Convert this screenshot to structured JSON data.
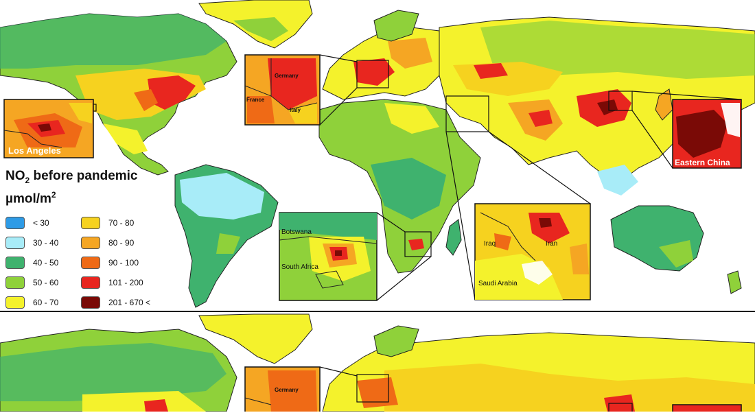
{
  "panels": [
    {
      "legend": {
        "title_prefix": "NO",
        "title_sub": "2",
        "title_suffix": " before pandemic",
        "unit_prefix": "µmol/m",
        "unit_sup": "2",
        "items": [
          {
            "label": "< 30",
            "color": "#2e9be6"
          },
          {
            "label": "30 - 40",
            "color": "#a8ecf8"
          },
          {
            "label": "40 - 50",
            "color": "#3fb26e"
          },
          {
            "label": "50 - 60",
            "color": "#8fd13a"
          },
          {
            "label": "60 - 70",
            "color": "#f4f22c"
          },
          {
            "label": "70 - 80",
            "color": "#f6d21f"
          },
          {
            "label": "80 - 90",
            "color": "#f5a623"
          },
          {
            "label": "90 - 100",
            "color": "#ef6a16"
          },
          {
            "label": "101 - 200",
            "color": "#e8261f"
          },
          {
            "label": "201 - 670 <",
            "color": "#7a0a06"
          }
        ]
      },
      "insets": {
        "los_angeles": "Los Angeles",
        "europe": {
          "germany": "Germany",
          "france": "France",
          "italy": "Italy"
        },
        "eastern_china": "Eastern China",
        "southern_africa": {
          "botswana": "Botswana",
          "south_africa": "South Africa"
        },
        "middle_east": {
          "iraq": "Iraq",
          "iran": "Iran",
          "saudi_arabia": "Saudi Arabia"
        }
      }
    },
    {
      "insets": {
        "europe": {
          "germany": "Germany"
        }
      }
    }
  ]
}
